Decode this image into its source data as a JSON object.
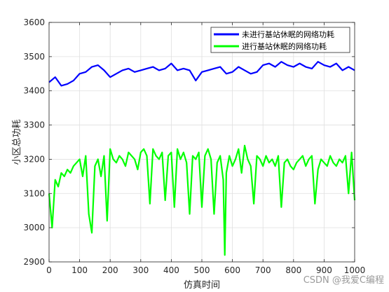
{
  "chart_data": {
    "type": "line",
    "xlabel": "仿真时间",
    "ylabel": "小区总功耗",
    "xlim": [
      0,
      1000
    ],
    "ylim": [
      2900,
      3600
    ],
    "xticks": [
      0,
      100,
      200,
      300,
      400,
      500,
      600,
      700,
      800,
      900,
      1000
    ],
    "yticks": [
      2900,
      3000,
      3100,
      3200,
      3300,
      3400,
      3500,
      3600
    ],
    "grid": true,
    "legend_position": "top-right",
    "series": [
      {
        "name": "未进行基站休眠的网络功耗",
        "color": "#0000ff",
        "x": [
          0,
          20,
          40,
          60,
          80,
          100,
          120,
          140,
          160,
          180,
          200,
          220,
          240,
          260,
          280,
          300,
          320,
          340,
          360,
          380,
          400,
          420,
          440,
          460,
          480,
          500,
          520,
          540,
          560,
          580,
          600,
          620,
          640,
          660,
          680,
          700,
          720,
          740,
          760,
          780,
          800,
          820,
          840,
          860,
          880,
          900,
          920,
          940,
          960,
          980,
          1000
        ],
        "y": [
          3425,
          3440,
          3415,
          3420,
          3430,
          3450,
          3455,
          3470,
          3475,
          3460,
          3440,
          3450,
          3460,
          3465,
          3455,
          3460,
          3465,
          3470,
          3460,
          3465,
          3480,
          3460,
          3465,
          3460,
          3430,
          3455,
          3460,
          3465,
          3470,
          3450,
          3455,
          3470,
          3460,
          3450,
          3455,
          3475,
          3480,
          3470,
          3485,
          3475,
          3470,
          3480,
          3470,
          3465,
          3485,
          3475,
          3470,
          3480,
          3460,
          3470,
          3460
        ]
      },
      {
        "name": "进行基站休眠的网络功耗",
        "color": "#00ff00",
        "x": [
          0,
          10,
          20,
          30,
          40,
          50,
          60,
          70,
          80,
          90,
          100,
          110,
          120,
          130,
          140,
          150,
          160,
          170,
          180,
          190,
          200,
          210,
          220,
          230,
          240,
          250,
          260,
          270,
          280,
          290,
          300,
          310,
          320,
          330,
          340,
          350,
          360,
          370,
          380,
          390,
          400,
          410,
          420,
          430,
          440,
          450,
          460,
          470,
          480,
          490,
          500,
          510,
          520,
          530,
          540,
          550,
          560,
          570,
          575,
          580,
          590,
          600,
          610,
          620,
          630,
          640,
          650,
          660,
          670,
          680,
          690,
          700,
          710,
          720,
          730,
          740,
          750,
          760,
          770,
          780,
          790,
          800,
          810,
          820,
          830,
          840,
          850,
          860,
          870,
          880,
          890,
          900,
          910,
          920,
          930,
          940,
          950,
          960,
          970,
          980,
          990,
          1000
        ],
        "y": [
          3100,
          3000,
          3140,
          3120,
          3160,
          3150,
          3170,
          3160,
          3180,
          3190,
          3200,
          3150,
          3210,
          3040,
          2985,
          3180,
          3200,
          3150,
          3210,
          3020,
          3230,
          3200,
          3190,
          3210,
          3200,
          3180,
          3220,
          3210,
          3200,
          3170,
          3220,
          3230,
          3210,
          3070,
          3230,
          3210,
          3200,
          3220,
          3080,
          3210,
          3220,
          3060,
          3230,
          3200,
          3220,
          3190,
          3040,
          3210,
          3200,
          3220,
          3060,
          3210,
          3230,
          3200,
          3040,
          3190,
          3210,
          3140,
          2920,
          3160,
          3210,
          3180,
          3200,
          3230,
          3160,
          3240,
          3200,
          3180,
          3070,
          3210,
          3200,
          3180,
          3210,
          3190,
          3200,
          3180,
          3210,
          3060,
          3190,
          3200,
          3180,
          3170,
          3190,
          3200,
          3210,
          3180,
          3200,
          3210,
          3070,
          3170,
          3200,
          3190,
          3180,
          3210,
          3190,
          3180,
          3200,
          3190,
          3210,
          3100,
          3220,
          3080
        ]
      }
    ]
  },
  "watermark": "CSDN @我爱C编程"
}
